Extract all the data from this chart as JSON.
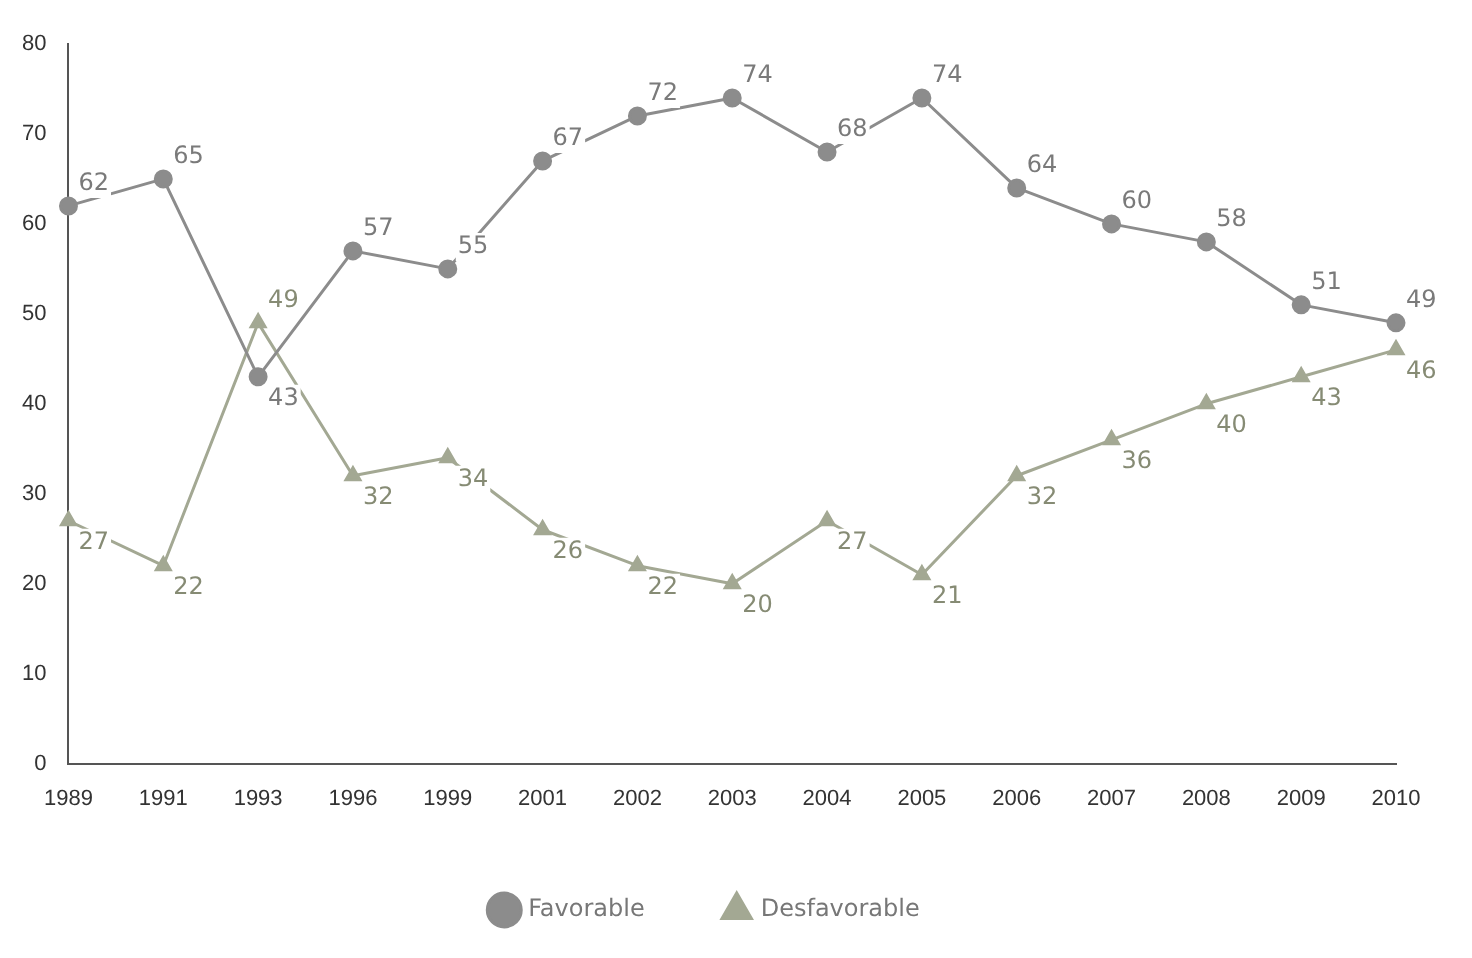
{
  "chart_data": {
    "type": "line",
    "categories": [
      "1989",
      "1991",
      "1993",
      "1996",
      "1999",
      "2001",
      "2002",
      "2003",
      "2004",
      "2005",
      "2006",
      "2007",
      "2008",
      "2009",
      "2010"
    ],
    "series": [
      {
        "name": "Favorable",
        "color": "#8c8c8c",
        "marker": "circle",
        "values": [
          62,
          65,
          43,
          57,
          55,
          67,
          72,
          74,
          68,
          74,
          64,
          60,
          58,
          51,
          49
        ]
      },
      {
        "name": "Desfavorable",
        "color": "#a3a893",
        "marker": "triangle",
        "values": [
          27,
          22,
          49,
          32,
          34,
          26,
          22,
          20,
          27,
          21,
          32,
          36,
          40,
          43,
          46
        ]
      }
    ],
    "ylim": [
      0,
      80
    ],
    "yticks": [
      0,
      10,
      20,
      30,
      40,
      50,
      60,
      70,
      80
    ],
    "grid": false,
    "legend": "bottom",
    "data_labels": true,
    "line_style": "solid"
  }
}
